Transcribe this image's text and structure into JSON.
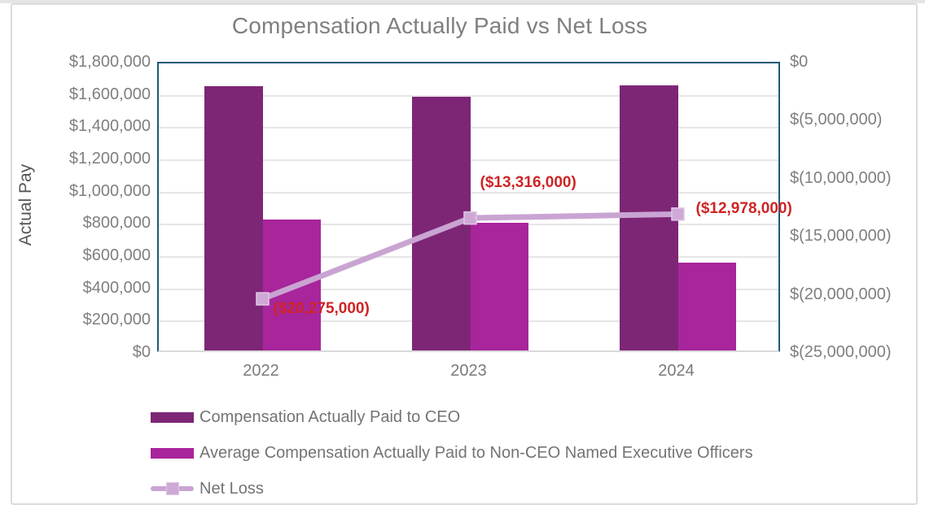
{
  "chart_data": {
    "type": "combo-bar-line",
    "title": "Compensation Actually Paid vs Net Loss",
    "categories": [
      "2022",
      "2023",
      "2024"
    ],
    "series": [
      {
        "name": "Compensation Actually Paid to CEO",
        "type": "bar",
        "axis": "left",
        "color": "#7D2676",
        "values": [
          1640000,
          1575000,
          1645000
        ]
      },
      {
        "name": "Average Compensation Actually Paid to Non-CEO Named Executive Officers",
        "type": "bar",
        "axis": "left",
        "color": "#A8259C",
        "values": [
          810000,
          790000,
          545000
        ]
      },
      {
        "name": "Net Loss",
        "type": "line",
        "axis": "right",
        "color": "#C9A4D2",
        "marker_color": "#CFA9D6",
        "marker_edge_color": "#DFC8E4",
        "values": [
          -20275000,
          -13316000,
          -12978000
        ],
        "data_labels": [
          "($20,275,000)",
          "($13,316,000)",
          "($12,978,000)"
        ],
        "data_label_color": "#CE2424"
      }
    ],
    "left_axis": {
      "title": "Actual Pay",
      "min": 0,
      "max": 1800000,
      "tick_labels": [
        "$1,800,000",
        "$1,600,000",
        "$1,400,000",
        "$1,200,000",
        "$1,000,000",
        "$800,000",
        "$600,000",
        "$400,000",
        "$200,000",
        "$0"
      ]
    },
    "right_axis": {
      "min": -25000000,
      "max": 0,
      "tick_labels": [
        "$0",
        "$(5,000,000)",
        "$(10,000,000)",
        "$(15,000,000)",
        "$(20,000,000)",
        "$(25,000,000)"
      ]
    },
    "grid": true,
    "legend_position": "bottom-left"
  },
  "colors": {
    "plot_border": "#1F5A78",
    "gridline": "#E6E6E6",
    "axis_text": "#7F7F7F",
    "title_text": "#7E7F81",
    "legend_text": "#737476",
    "card_border": "#DCDCDC"
  }
}
